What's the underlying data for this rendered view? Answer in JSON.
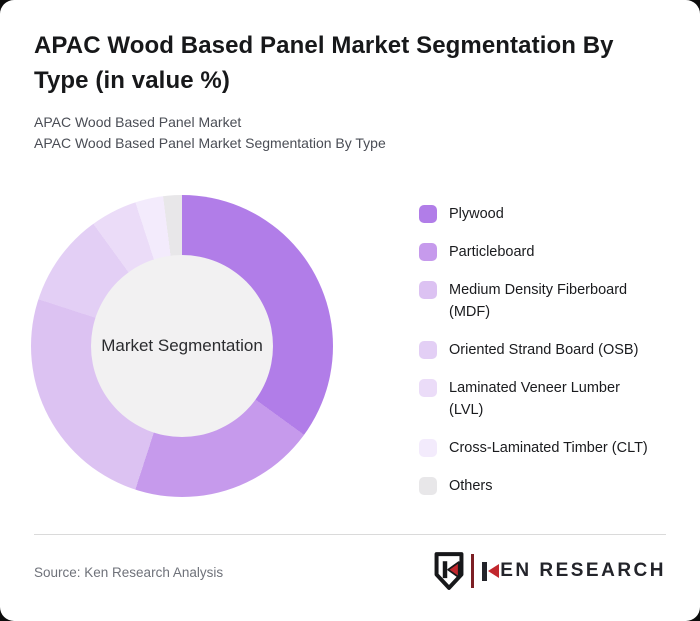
{
  "page": {
    "title": "APAC Wood Based Panel Market Segmentation By Type (in value %)",
    "subtitles": [
      "APAC Wood Based Panel Market",
      "APAC Wood Based Panel Market Segmentation By Type"
    ],
    "source_note": "Source: Ken Research Analysis"
  },
  "brand": {
    "name": "Ken Research",
    "wordmark_rest": "EN RESEARCH",
    "red": "#c1272d",
    "dark": "#23242a"
  },
  "chart_data": {
    "type": "pie",
    "subtype": "donut",
    "title": "APAC Wood Based Panel Market Segmentation By Type (in value %)",
    "center_label": "Market Segmentation",
    "legend_position": "right",
    "start_angle_deg": 0,
    "direction": "clockwise",
    "values_estimated_from_arc_angles": true,
    "unit": "%",
    "categories": [
      "Plywood",
      "Particleboard",
      "Medium Density Fiberboard (MDF)",
      "Oriented Strand Board (OSB)",
      "Laminated Veneer Lumber (LVL)",
      "Cross-Laminated Timber (CLT)",
      "Others"
    ],
    "values": [
      35,
      20,
      25,
      10,
      5,
      3,
      2
    ],
    "colors": [
      "#b17de8",
      "#c69aec",
      "#dcc2f2",
      "#e3cff5",
      "#ebdcf8",
      "#f3ebfc",
      "#e8e7e9"
    ],
    "legend_lines": [
      [
        "Plywood"
      ],
      [
        "Particleboard"
      ],
      [
        "Medium Density Fiberboard",
        "(MDF)"
      ],
      [
        "Oriented Strand Board (OSB)"
      ],
      [
        "Laminated Veneer Lumber",
        "(LVL)"
      ],
      [
        "Cross-Laminated Timber (CLT)"
      ],
      [
        "Others"
      ]
    ],
    "inner_circle_color": "#f2f1f2"
  }
}
